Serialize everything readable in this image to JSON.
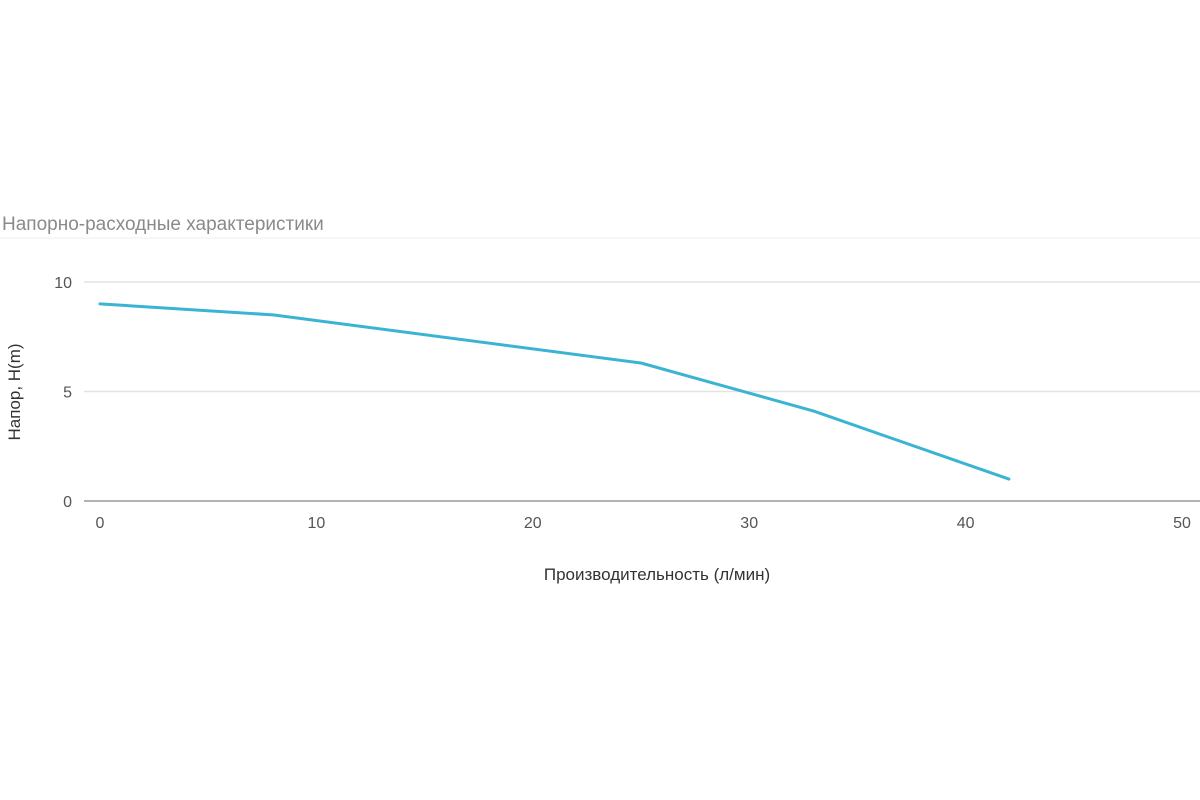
{
  "chart_data": {
    "type": "line",
    "title": "Напорно-расходные характеристики",
    "xlabel": "Производительность (л/мин)",
    "ylabel": "Напор, H(m)",
    "xlim": [
      0,
      50
    ],
    "ylim": [
      0,
      10
    ],
    "x_ticks": [
      "0",
      "10",
      "20",
      "30",
      "40",
      "50"
    ],
    "y_ticks": [
      "0",
      "5",
      "10"
    ],
    "grid": true,
    "series": [
      {
        "color": "#3ab4d2",
        "x": [
          0,
          8,
          25,
          33,
          42
        ],
        "y": [
          9.0,
          8.5,
          6.3,
          4.1,
          1.0
        ]
      }
    ]
  },
  "colors": {
    "line": "#3ab4d2",
    "grid": "#e3e3e3",
    "axis": "#999999"
  }
}
